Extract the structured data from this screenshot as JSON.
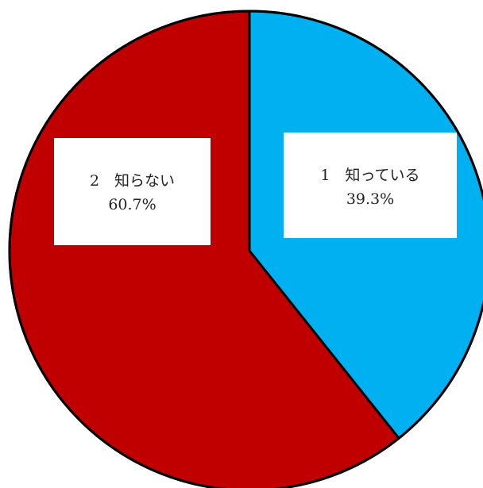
{
  "chart_data": {
    "type": "pie",
    "title": "",
    "slices": [
      {
        "label": "1　知っている",
        "value": 39.3,
        "value_label": "39.3%",
        "color": "#00B0F0"
      },
      {
        "label": "2　知らない",
        "value": 60.7,
        "value_label": "60.7%",
        "color": "#C00000"
      }
    ],
    "start": "top",
    "direction": "clockwise",
    "legend": "none"
  }
}
